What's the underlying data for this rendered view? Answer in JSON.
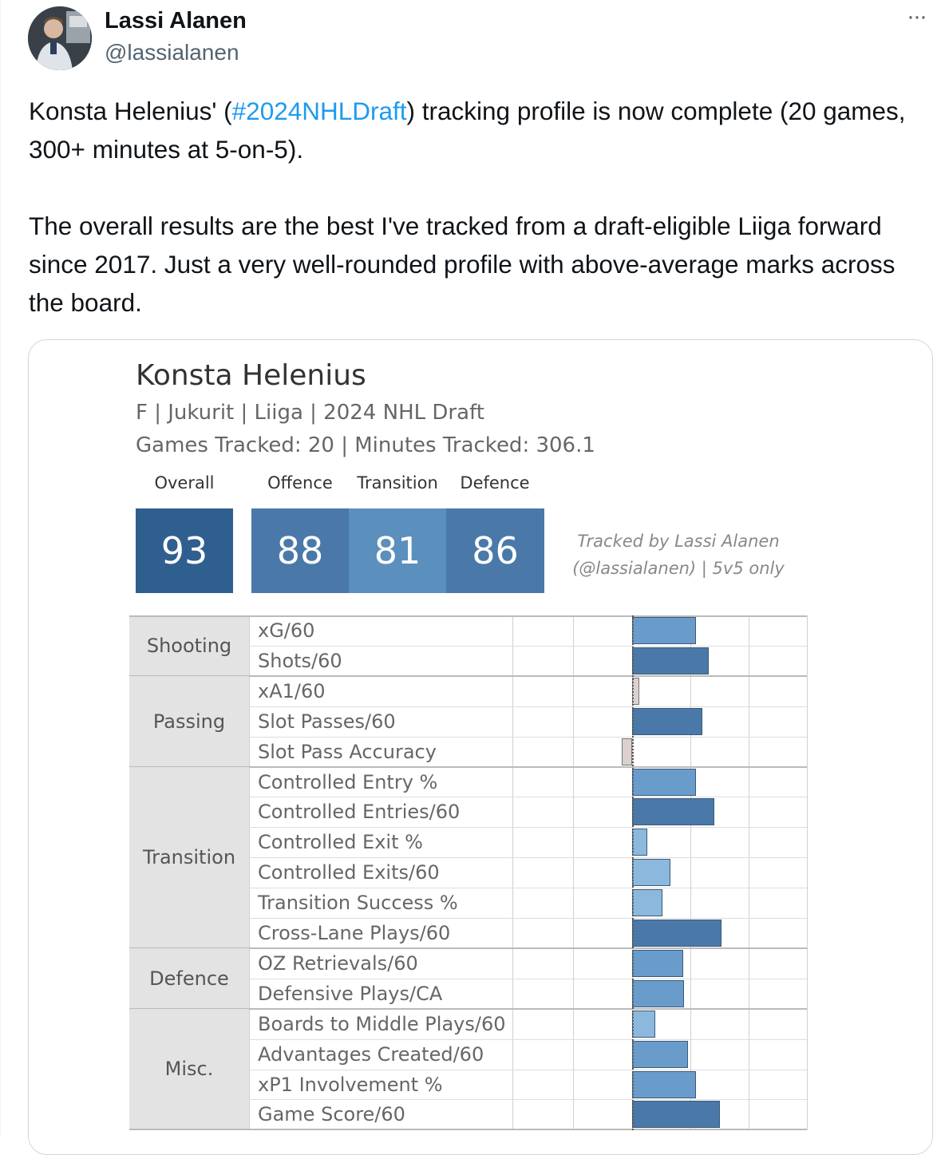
{
  "author": {
    "name": "Lassi Alanen",
    "handle": "@lassialanen",
    "avatar_icon": "profile-photo"
  },
  "more_icon": "more-options-icon",
  "tweet": {
    "line1_before": "Konsta Helenius' (",
    "hashtag": "#2024NHLDraft",
    "line1_after": ") tracking profile is now complete (20 games, 300+ minutes at 5-on-5).",
    "paragraph2": "The overall results are the best I've tracked from a draft-eligible Liiga forward since 2017. Just a very well-rounded profile with above-average marks across the board."
  },
  "card": {
    "player_name": "Konsta Helenius",
    "meta": "F | Jukurit | Liiga | 2024 NHL Draft",
    "tracked": "Games Tracked: 20 | Minutes Tracked: 306.1",
    "credit_line1": "Tracked by Lassi Alanen",
    "credit_line2": "(@lassialanen) | 5v5 only",
    "scores": [
      {
        "label": "Overall",
        "value": "93",
        "color": "#2f5f8f"
      },
      {
        "label": "Offence",
        "value": "88",
        "color": "#4a79a9"
      },
      {
        "label": "Transition",
        "value": "81",
        "color": "#5b8fbd"
      },
      {
        "label": "Defence",
        "value": "86",
        "color": "#4a79a9"
      }
    ]
  },
  "chart_data": {
    "type": "bar",
    "title": "Konsta Helenius",
    "groups": [
      {
        "category": "Shooting",
        "metrics": [
          {
            "label": "xG/60",
            "value": 0.55
          },
          {
            "label": "Shots/60",
            "value": 0.66
          }
        ]
      },
      {
        "category": "Passing",
        "metrics": [
          {
            "label": "xA1/60",
            "value": 0.06
          },
          {
            "label": "Slot Passes/60",
            "value": 0.61
          },
          {
            "label": "Slot Pass Accuracy",
            "value": -0.09
          }
        ]
      },
      {
        "category": "Transition",
        "metrics": [
          {
            "label": "Controlled Entry %",
            "value": 0.55
          },
          {
            "label": "Controlled Entries/60",
            "value": 0.71
          },
          {
            "label": "Controlled Exit %",
            "value": 0.13
          },
          {
            "label": "Controlled Exits/60",
            "value": 0.33
          },
          {
            "label": "Transition Success %",
            "value": 0.26
          },
          {
            "label": "Cross-Lane Plays/60",
            "value": 0.77
          }
        ]
      },
      {
        "category": "Defence",
        "metrics": [
          {
            "label": "OZ Retrievals/60",
            "value": 0.44
          },
          {
            "label": "Defensive Plays/CA",
            "value": 0.45
          }
        ]
      },
      {
        "category": "Misc.",
        "metrics": [
          {
            "label": "Boards to Middle Plays/60",
            "value": 0.2
          },
          {
            "label": "Advantages Created/60",
            "value": 0.48
          },
          {
            "label": "xP1 Involvement %",
            "value": 0.55
          },
          {
            "label": "Game Score/60",
            "value": 0.76
          }
        ]
      }
    ],
    "xlim": [
      -1,
      1.5
    ],
    "colors": {
      "low": "#8cb8dd",
      "mid": "#6a9ccb",
      "high": "#4a79a9",
      "negative": "#ddd0d0"
    }
  }
}
